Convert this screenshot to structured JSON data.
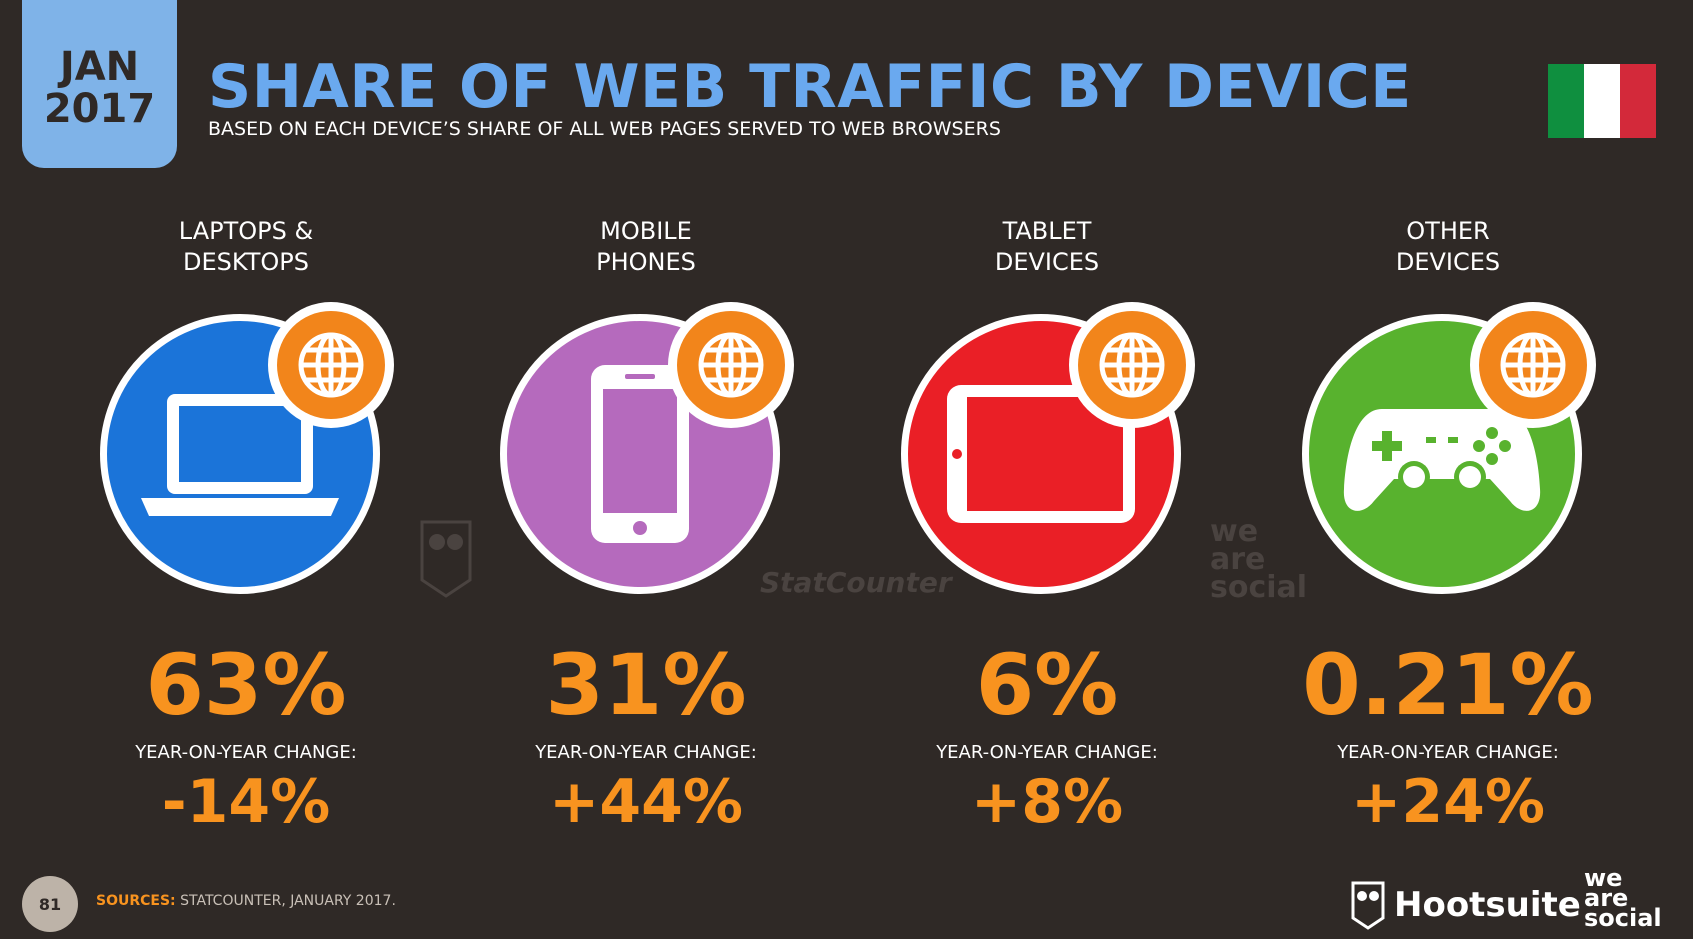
{
  "header": {
    "month": "JAN",
    "year": "2017",
    "title": "SHARE OF WEB TRAFFIC BY DEVICE",
    "subtitle": "BASED ON EACH DEVICE’S SHARE OF ALL WEB PAGES SERVED TO WEB BROWSERS"
  },
  "flag": {
    "colors": [
      "#0f8f3f",
      "#ffffff",
      "#d3293a"
    ],
    "icon": "italy-flag-icon"
  },
  "devices": [
    {
      "label": "LAPTOPS &\nDESKTOPS",
      "share": "63%",
      "yoy_label": "YEAR-ON-YEAR CHANGE:",
      "yoy": "-14%",
      "color": "#1b74d9",
      "icon": "laptop-icon"
    },
    {
      "label": "MOBILE\nPHONES",
      "share": "31%",
      "yoy_label": "YEAR-ON-YEAR CHANGE:",
      "yoy": "+44%",
      "color": "#b56abd",
      "icon": "mobile-phone-icon"
    },
    {
      "label": "TABLET\nDEVICES",
      "share": "6%",
      "yoy_label": "YEAR-ON-YEAR CHANGE:",
      "yoy": "+8%",
      "color": "#ea1f26",
      "icon": "tablet-icon"
    },
    {
      "label": "OTHER\nDEVICES",
      "share": "0.21%",
      "yoy_label": "YEAR-ON-YEAR CHANGE:",
      "yoy": "+24%",
      "color": "#58b22e",
      "icon": "game-controller-icon"
    }
  ],
  "watermarks": {
    "statcounter": "StatCounter",
    "we_are_social": "we\nare\nsocial"
  },
  "footer": {
    "page_number": "81",
    "sources_label": "SOURCES:",
    "sources_text": " STATCOUNTER, JANUARY 2017.",
    "hootsuite": "Hootsuite",
    "we_are_social": "we\nare\nsocial"
  }
}
